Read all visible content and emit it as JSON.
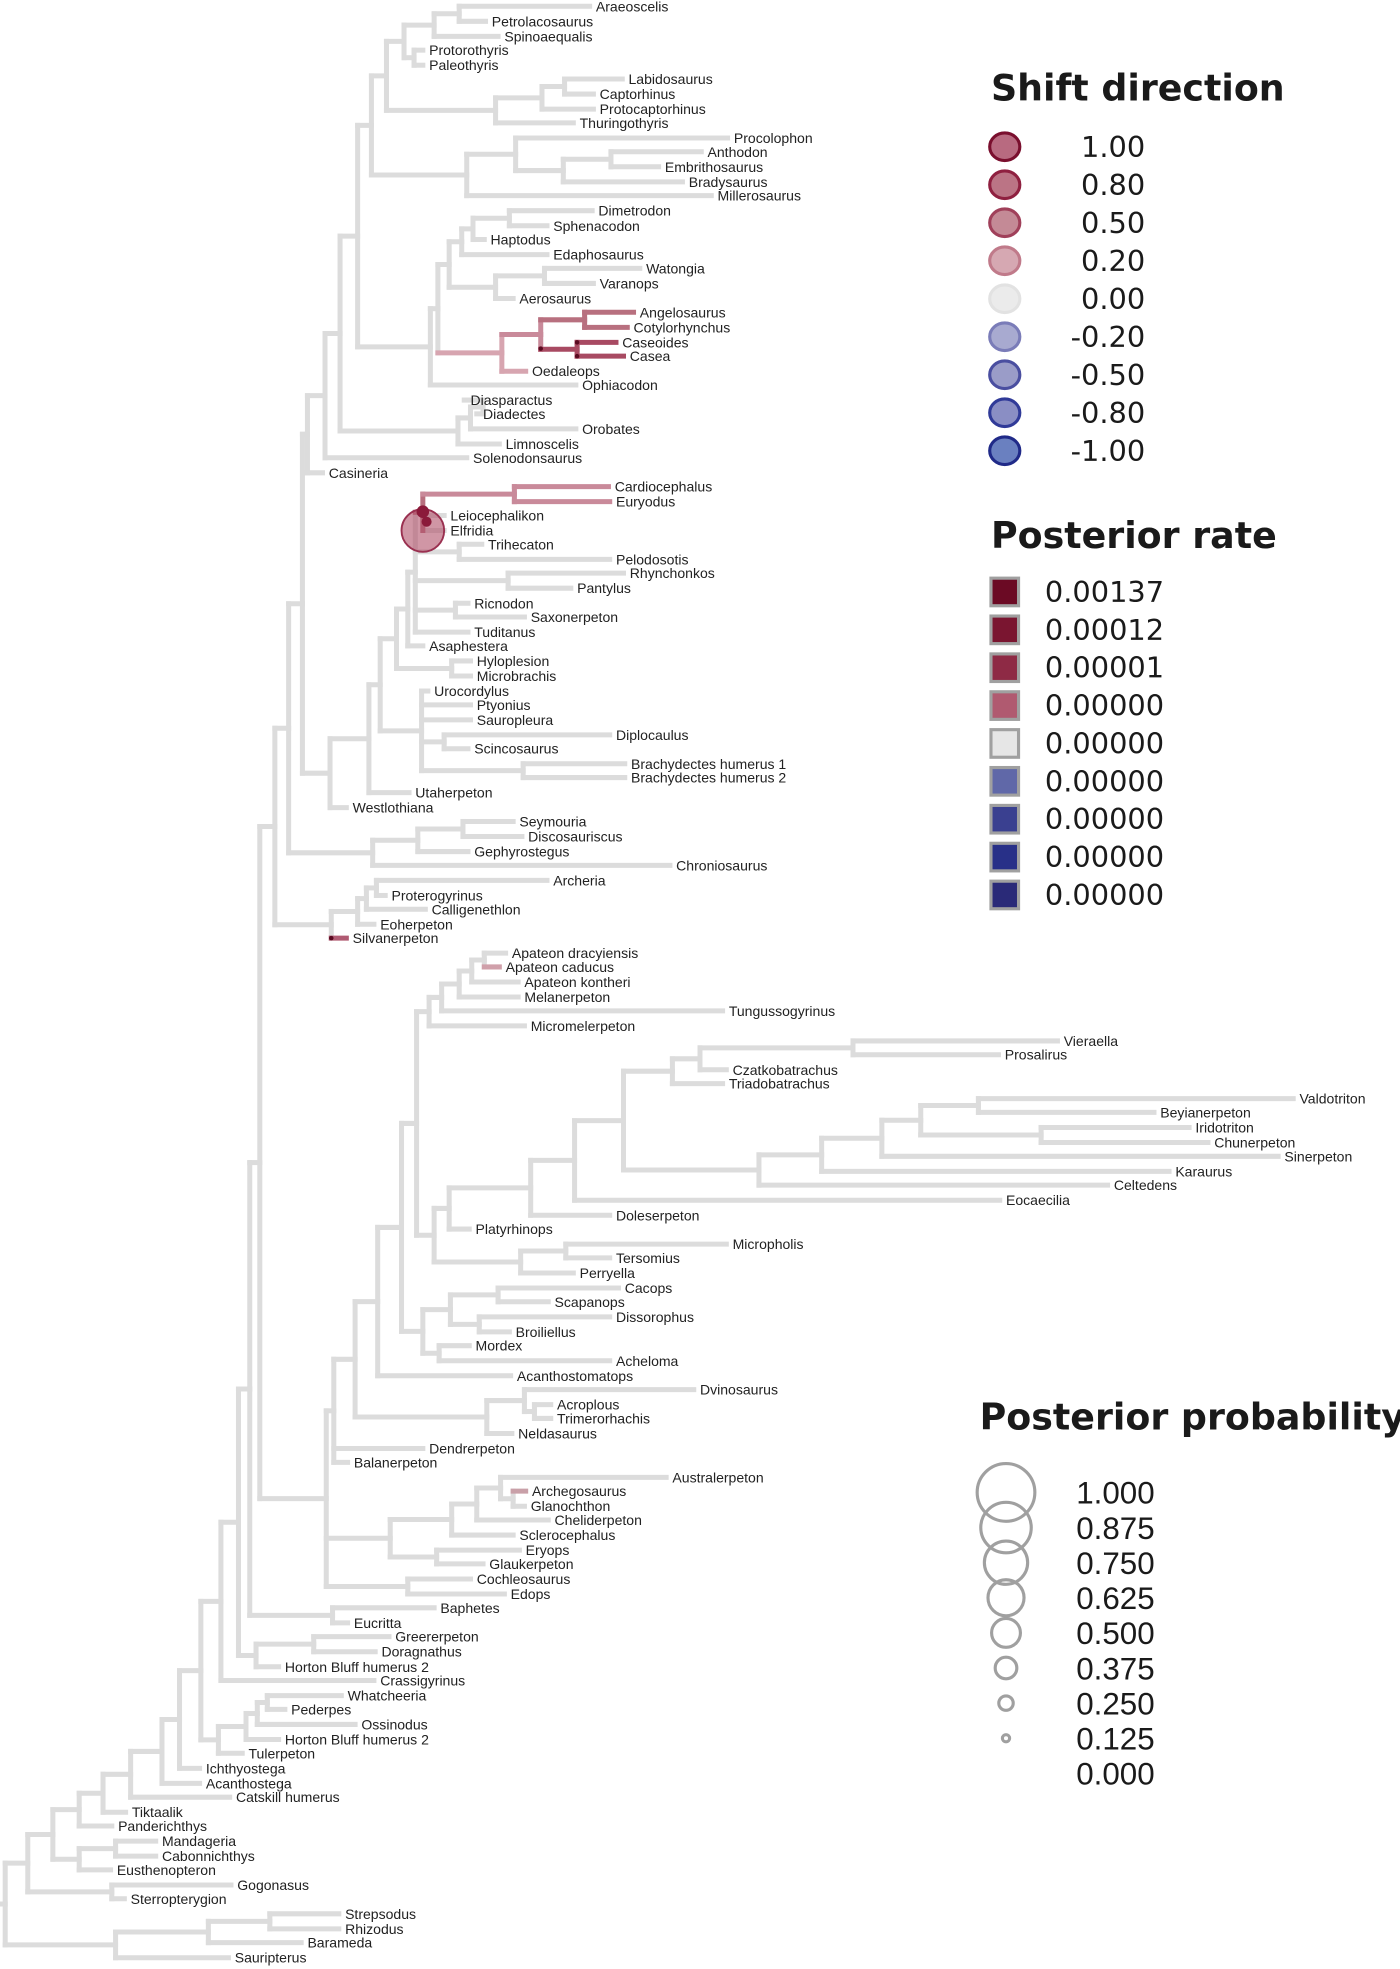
{
  "taxa": [
    "Araeoscelis",
    "Petrolacosaurus",
    "Spinoaequalis",
    "Protorothyris",
    "Paleothyris",
    "Labidosaurus",
    "Captorhinus",
    "Protocaptorhinus",
    "Thuringothyris",
    "Procolophon",
    "Anthodon",
    "Embrithosaurus",
    "Bradysaurus",
    "Millerosaurus",
    "Dimetrodon",
    "Sphenacodon",
    "Haptodus",
    "Edaphosaurus",
    "Watongia",
    "Varanops",
    "Aerosaurus",
    "Angelosaurus",
    "Cotylorhynchus",
    "Caseoides",
    "Casea",
    "Oedaleops",
    "Ophiacodon",
    "Diasparactus",
    "Diadectes",
    "Orobates",
    "Limnoscelis",
    "Solenodonsaurus",
    "Casineria",
    "Cardiocephalus",
    "Euryodus",
    "Leiocephalikon",
    "Elfridia",
    "Trihecaton",
    "Pelodosotis",
    "Rhynchonkos",
    "Pantylus",
    "Ricnodon",
    "Saxonerpeton",
    "Tuditanus",
    "Asaphestera",
    "Hyloplesion",
    "Microbrachis",
    "Urocordylus",
    "Ptyonius",
    "Sauropleura",
    "Diplocaulus",
    "Scincosaurus",
    "Brachydectes humerus 1",
    "Brachydectes humerus 2",
    "Utaherpeton",
    "Westlothiana",
    "Seymouria",
    "Discosauriscus",
    "Gephyrostegus",
    "Chroniosaurus",
    "Archeria",
    "Proterogyrinus",
    "Calligenethlon",
    "Eoherpeton",
    "Silvanerpeton",
    "Apateon dracyiensis",
    "Apateon caducus",
    "Apateon kontheri",
    "Melanerpeton",
    "Tungussogyrinus",
    "Micromelerpeton",
    "Vieraella",
    "Prosalirus",
    "Czatkobatrachus",
    "Triadobatrachus",
    "Valdotriton",
    "Beyianerpeton",
    "Iridotriton",
    "Chunerpeton",
    "Sinerpeton",
    "Karaurus",
    "Celtedens",
    "Eocaecilia",
    "Doleserpeton",
    "Platyrhinops",
    "Micropholis",
    "Tersomius",
    "Perryella",
    "Cacops",
    "Scapanops",
    "Dissorophus",
    "Broiliellus",
    "Mordex",
    "Acheloma",
    "Acanthostomatops",
    "Dvinosaurus",
    "Acroplous",
    "Trimerorhachis",
    "Neldasaurus",
    "Dendrerpeton",
    "Balanerpeton",
    "Australerpeton",
    "Archegosaurus",
    "Glanochthon",
    "Cheliderpeton",
    "Sclerocephalus",
    "Eryops",
    "Glaukerpeton",
    "Cochleosaurus",
    "Edops",
    "Baphetes",
    "Eucritta",
    "Greererpeton",
    "Doragnathus",
    "Horton Bluff humerus 2",
    "Crassigyrinus",
    "Whatcheeria",
    "Pederpes",
    "Ossinodus",
    "Horton Bluff humerus 2",
    "Tulerpeton",
    "Ichthyostega",
    "Acanthostega",
    "Catskill humerus",
    "Tiktaalik",
    "Panderichthys",
    "Mandageria",
    "Cabonnichthys",
    "Eusthenopteron",
    "Gogonasus",
    "Sterropterygion",
    "Strepsodus",
    "Rhizodus",
    "Barameda",
    "Sauripterus"
  ],
  "legend_shift": {
    "title": "Shift direction",
    "items": [
      {
        "label": "1.00",
        "fill": "#b86a80",
        "stroke": "#7a0f2e"
      },
      {
        "label": "0.80",
        "fill": "#bb7485",
        "stroke": "#8f2040"
      },
      {
        "label": "0.50",
        "fill": "#c48a96",
        "stroke": "#a0405a"
      },
      {
        "label": "0.20",
        "fill": "#d6a8b2",
        "stroke": "#c07a8a"
      },
      {
        "label": "0.00",
        "fill": "#ebebeb",
        "stroke": "#e2e2e2"
      },
      {
        "label": "-0.20",
        "fill": "#a8aad0",
        "stroke": "#7a7cb8"
      },
      {
        "label": "-0.50",
        "fill": "#9a9cc8",
        "stroke": "#4a4ea0"
      },
      {
        "label": "-0.80",
        "fill": "#8a8ec4",
        "stroke": "#303a98"
      },
      {
        "label": "-1.00",
        "fill": "#6a80c0",
        "stroke": "#202a88"
      }
    ]
  },
  "legend_rate": {
    "title": "Posterior rate",
    "items": [
      {
        "label": "0.00137",
        "fill": "#6b0a24"
      },
      {
        "label": "0.00012",
        "fill": "#7a1530"
      },
      {
        "label": "0.00001",
        "fill": "#8e2a45"
      },
      {
        "label": "0.00000",
        "fill": "#b05a70"
      },
      {
        "label": "0.00000",
        "fill": "#e6e6e6"
      },
      {
        "label": "0.00000",
        "fill": "#6068a8"
      },
      {
        "label": "0.00000",
        "fill": "#3a4090"
      },
      {
        "label": "0.00000",
        "fill": "#283088"
      },
      {
        "label": "0.00000",
        "fill": "#2a2a78"
      }
    ]
  },
  "legend_prob": {
    "title": "Posterior probability",
    "items": [
      {
        "label": "1.000",
        "value": 1.0
      },
      {
        "label": "0.875",
        "value": 0.875
      },
      {
        "label": "0.750",
        "value": 0.75
      },
      {
        "label": "0.625",
        "value": 0.625
      },
      {
        "label": "0.500",
        "value": 0.5
      },
      {
        "label": "0.375",
        "value": 0.375
      },
      {
        "label": "0.250",
        "value": 0.25
      },
      {
        "label": "0.125",
        "value": 0.125
      },
      {
        "label": "0.000",
        "value": 0.0
      }
    ]
  },
  "colors": {
    "branch": "#dcdcdc",
    "shift_pos": "#c98a9a",
    "shift_strong": "#a84a62",
    "label": "#222222"
  }
}
